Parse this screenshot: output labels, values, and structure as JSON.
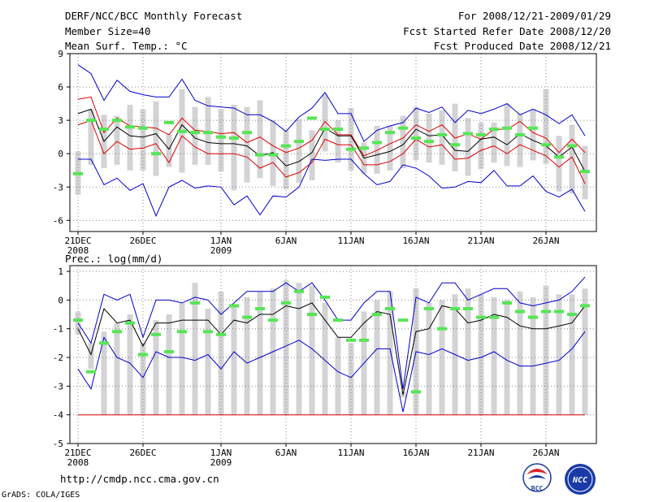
{
  "header": {
    "title": "DERF/NCC/BCC Monthly Forecast",
    "member_size": "Member Size=40",
    "variable": "Mean Surf. Temp.: °C",
    "period": "For 2008/12/21-2009/01/29",
    "started": "Fcst Started Refer Date 2008/12/20",
    "produced": "Fcst Produced Date 2008/12/21"
  },
  "footer": {
    "url": "http://cmdp.ncc.cma.gov.cn",
    "grads": "GrADS: COLA/IGES",
    "logo_bcc": "BCC",
    "logo_ncc": "NCC"
  },
  "colors": {
    "max_line": "#0000cc",
    "min_line": "#0000cc",
    "mean_line": "#000000",
    "spread_lines": "#dd0000",
    "bars": "#d3d3d5",
    "mid_marks": "#55e655",
    "grid": "#888888"
  },
  "chart_data": [
    {
      "type": "line",
      "title": "Mean Surf. Temp.: °C",
      "ylim": [
        -7,
        9
      ],
      "yticks": [
        -6,
        -3,
        0,
        3,
        6,
        9
      ],
      "x": [
        1,
        2,
        3,
        4,
        5,
        6,
        7,
        8,
        9,
        10,
        11,
        12,
        13,
        14,
        15,
        16,
        17,
        18,
        19,
        20,
        21,
        22,
        23,
        24,
        25,
        26,
        27,
        28,
        29,
        30,
        31,
        32,
        33,
        34,
        35,
        36,
        37,
        38,
        39,
        40
      ],
      "xticks": [
        {
          "day": 1,
          "label": "21DEC",
          "label2": "2008"
        },
        {
          "day": 6,
          "label": "26DEC",
          "label2": ""
        },
        {
          "day": 12,
          "label": "1JAN",
          "label2": "2009"
        },
        {
          "day": 17,
          "label": "6JAN",
          "label2": ""
        },
        {
          "day": 22,
          "label": "11JAN",
          "label2": ""
        },
        {
          "day": 27,
          "label": "16JAN",
          "label2": ""
        },
        {
          "day": 32,
          "label": "21JAN",
          "label2": ""
        },
        {
          "day": 37,
          "label": "26JAN",
          "label2": ""
        }
      ],
      "series": [
        {
          "name": "max",
          "values": [
            8.0,
            7.2,
            4.8,
            6.6,
            5.6,
            5.3,
            5.1,
            5.1,
            6.7,
            4.8,
            4.3,
            4.2,
            4.1,
            3.5,
            3.5,
            2.9,
            2.0,
            3.3,
            4.1,
            5.5,
            3.6,
            3.6,
            1.1,
            2.1,
            2.5,
            2.8,
            4.1,
            3.7,
            4.2,
            2.8,
            3.9,
            3.6,
            4.0,
            4.5,
            3.5,
            4.0,
            3.5,
            2.7,
            3.5,
            1.6
          ]
        },
        {
          "name": "spread_upper",
          "values": [
            4.9,
            5.1,
            1.9,
            3.2,
            2.5,
            2.4,
            2.3,
            1.7,
            3.2,
            2.1,
            2.0,
            1.8,
            1.9,
            1.0,
            1.5,
            0.7,
            0.1,
            0.5,
            1.2,
            2.9,
            1.7,
            1.7,
            -0.2,
            0.3,
            0.9,
            1.4,
            2.6,
            2.0,
            2.6,
            1.4,
            1.8,
            1.3,
            2.2,
            2.2,
            2.9,
            1.9,
            1.4,
            0.1,
            1.3,
            0.1
          ]
        },
        {
          "name": "mean",
          "values": [
            3.6,
            4.0,
            1.1,
            2.4,
            1.6,
            1.5,
            1.8,
            0.4,
            2.6,
            1.4,
            1.0,
            0.9,
            0.9,
            0.7,
            -0.2,
            0.1,
            -1.1,
            -0.7,
            0.1,
            2.3,
            1.6,
            1.6,
            -0.4,
            -0.1,
            0.2,
            0.8,
            2.2,
            1.6,
            1.7,
            0.3,
            0.2,
            1.3,
            1.5,
            0.8,
            1.8,
            1.2,
            0.7,
            -0.3,
            0.6,
            -1.6
          ]
        },
        {
          "name": "spread_lower",
          "values": [
            2.6,
            3.0,
            0.0,
            1.1,
            0.4,
            0.5,
            0.9,
            -0.8,
            1.6,
            0.6,
            0.0,
            0.0,
            0.0,
            -0.3,
            -1.3,
            -0.8,
            -2.1,
            -1.7,
            -0.8,
            1.3,
            0.8,
            0.8,
            -1.0,
            -1.0,
            -0.7,
            0.0,
            1.3,
            0.6,
            0.8,
            -0.5,
            -0.4,
            0.3,
            0.7,
            0.0,
            0.8,
            0.3,
            -0.2,
            -1.2,
            -0.3,
            -2.7
          ]
        },
        {
          "name": "min",
          "values": [
            -0.5,
            -0.5,
            -2.8,
            -2.2,
            -3.3,
            -2.7,
            -5.6,
            -3.0,
            -2.4,
            -3.1,
            -2.9,
            -3.0,
            -4.6,
            -3.8,
            -5.5,
            -3.8,
            -3.9,
            -3.0,
            -0.5,
            -0.6,
            -0.5,
            -0.5,
            -1.8,
            -2.8,
            -2.5,
            -1.0,
            -1.3,
            -2.0,
            -3.1,
            -3.0,
            -2.5,
            -2.6,
            -1.5,
            -2.9,
            -2.9,
            -2.0,
            -3.4,
            -3.9,
            -3.2,
            -5.2
          ]
        }
      ],
      "bars_low": [
        -3.7,
        -1.0,
        -1.3,
        -1.0,
        -1.5,
        -1.5,
        -2.0,
        -1.2,
        -1.7,
        -1.0,
        -1.0,
        -1.6,
        -3.3,
        -2.6,
        -2.2,
        -2.9,
        -3.2,
        -2.6,
        -2.4,
        0.2,
        -0.8,
        -1.5,
        -1.8,
        -1.8,
        -1.5,
        -1.3,
        -0.6,
        -0.8,
        -1.0,
        -1.6,
        -2.0,
        -1.4,
        -0.8,
        -1.1,
        -1.2,
        -0.6,
        -0.9,
        -3.4,
        -3.6,
        -4.1
      ],
      "bars_high": [
        0.2,
        4.0,
        3.5,
        3.4,
        4.4,
        4.0,
        4.7,
        1.8,
        5.8,
        4.2,
        5.1,
        4.0,
        4.4,
        4.2,
        4.8,
        3.0,
        2.1,
        3.1,
        2.1,
        5.3,
        3.0,
        4.1,
        1.0,
        2.5,
        2.5,
        3.4,
        4.2,
        3.6,
        3.9,
        4.5,
        3.2,
        2.8,
        2.8,
        4.5,
        3.6,
        4.0,
        5.8,
        1.6,
        2.6,
        0.7
      ],
      "mid_marks": [
        -1.8,
        3.0,
        2.2,
        3.0,
        2.4,
        2.3,
        0.0,
        2.8,
        2.0,
        1.9,
        1.9,
        1.5,
        1.4,
        1.9,
        -0.1,
        -0.1,
        0.7,
        1.1,
        3.2,
        2.2,
        2.2,
        0.4,
        0.5,
        1.0,
        1.9,
        2.3,
        1.4,
        1.1,
        1.7,
        0.8,
        1.8,
        1.7,
        2.2,
        2.3,
        1.7,
        2.3,
        0.8,
        -0.3,
        0.7,
        -1.6
      ]
    },
    {
      "type": "line",
      "title": "Prec.: log(mm/d)",
      "ylim": [
        -5,
        1.2
      ],
      "yticks": [
        -5,
        -4,
        -3,
        -2,
        -1,
        0,
        1
      ],
      "x": [
        1,
        2,
        3,
        4,
        5,
        6,
        7,
        8,
        9,
        10,
        11,
        12,
        13,
        14,
        15,
        16,
        17,
        18,
        19,
        20,
        21,
        22,
        23,
        24,
        25,
        26,
        27,
        28,
        29,
        30,
        31,
        32,
        33,
        34,
        35,
        36,
        37,
        38,
        39,
        40
      ],
      "xticks": [
        {
          "day": 1,
          "label": "21DEC",
          "label2": "2008"
        },
        {
          "day": 6,
          "label": "26DEC",
          "label2": ""
        },
        {
          "day": 12,
          "label": "1JAN",
          "label2": "2009"
        },
        {
          "day": 17,
          "label": "6JAN",
          "label2": ""
        },
        {
          "day": 22,
          "label": "11JAN",
          "label2": ""
        },
        {
          "day": 27,
          "label": "16JAN",
          "label2": ""
        },
        {
          "day": 32,
          "label": "21JAN",
          "label2": ""
        },
        {
          "day": 37,
          "label": "26JAN",
          "label2": ""
        }
      ],
      "series": [
        {
          "name": "max",
          "values": [
            -0.8,
            -1.5,
            0.2,
            0.0,
            0.2,
            -1.3,
            0.0,
            0.0,
            -0.1,
            0.1,
            0.0,
            -0.5,
            -0.1,
            0.3,
            0.3,
            0.3,
            0.6,
            0.3,
            0.6,
            0.0,
            -0.7,
            -0.7,
            -0.1,
            0.3,
            0.3,
            -3.1,
            0.1,
            -0.1,
            0.6,
            0.6,
            0.0,
            0.2,
            0.4,
            0.4,
            -0.1,
            -0.2,
            -0.1,
            0.0,
            0.3,
            0.8
          ]
        },
        {
          "name": "mean",
          "values": [
            -1.0,
            -1.9,
            -0.3,
            -0.8,
            -0.7,
            -1.6,
            -0.8,
            -0.8,
            -0.7,
            -0.7,
            -0.7,
            -1.2,
            -0.7,
            -0.8,
            -0.5,
            -0.5,
            -0.2,
            -0.3,
            -0.1,
            -0.7,
            -1.3,
            -1.3,
            -0.8,
            -0.4,
            -0.5,
            -3.3,
            -1.1,
            -1.0,
            -0.2,
            -0.3,
            -0.8,
            -0.7,
            -0.5,
            -0.6,
            -0.9,
            -1.0,
            -1.0,
            -0.9,
            -0.8,
            -0.2
          ]
        },
        {
          "name": "min",
          "values": [
            -2.4,
            -3.1,
            -1.3,
            -2.0,
            -2.2,
            -2.7,
            -1.8,
            -2.0,
            -2.0,
            -2.1,
            -1.9,
            -2.4,
            -1.8,
            -2.2,
            -2.0,
            -1.8,
            -1.6,
            -1.4,
            -1.7,
            -2.1,
            -2.5,
            -2.7,
            -2.2,
            -1.7,
            -1.7,
            -3.9,
            -1.8,
            -1.9,
            -1.7,
            -1.9,
            -2.1,
            -2.0,
            -1.8,
            -2.1,
            -2.3,
            -2.3,
            -2.2,
            -2.1,
            -1.7,
            -1.1
          ]
        },
        {
          "name": "floor",
          "values": [
            -4.0,
            -4.0,
            -4.0,
            -4.0,
            -4.0,
            -4.0,
            -4.0,
            -4.0,
            -4.0,
            -4.0,
            -4.0,
            -4.0,
            -4.0,
            -4.0,
            -4.0,
            -4.0,
            -4.0,
            -4.0,
            -4.0,
            -4.0,
            -4.0,
            -4.0,
            -4.0,
            -4.0,
            -4.0,
            -4.0,
            -4.0,
            -4.0,
            -4.0,
            -4.0,
            -4.0,
            -4.0,
            -4.0,
            -4.0,
            -4.0,
            -4.0,
            -4.0,
            -4.0,
            -4.0,
            -4.0
          ]
        }
      ],
      "bars_low": [
        -1.2,
        -1.5,
        -4.0,
        -4.0,
        -4.0,
        -4.0,
        -4.0,
        -4.0,
        -4.0,
        -4.0,
        -4.0,
        -4.0,
        -4.0,
        -4.0,
        -4.0,
        -4.0,
        -4.0,
        -4.0,
        -4.0,
        -4.0,
        -4.0,
        -4.0,
        -4.0,
        -4.0,
        -4.0,
        -3.4,
        -4.0,
        -4.0,
        -4.0,
        -4.0,
        -4.0,
        -4.0,
        -4.0,
        -4.0,
        -4.0,
        -4.0,
        -4.0,
        -4.0,
        -4.0,
        -4.0
      ],
      "bars_high": [
        -0.4,
        -2.4,
        -1.1,
        -0.8,
        -0.5,
        -1.5,
        -0.7,
        -0.5,
        -0.1,
        0.6,
        -0.3,
        0.3,
        -0.2,
        0.1,
        0.3,
        0.4,
        0.7,
        0.6,
        0.5,
        -0.1,
        -1.3,
        -1.5,
        -0.4,
        0.0,
        0.3,
        -3.2,
        0.4,
        -0.1,
        0.0,
        0.2,
        0.4,
        0.2,
        0.1,
        0.0,
        0.3,
        0.1,
        0.5,
        0.2,
        0.2,
        0.4
      ],
      "mid_marks": [
        -0.7,
        -2.5,
        -1.5,
        -1.1,
        -0.8,
        -1.9,
        -1.2,
        -1.8,
        -1.1,
        -0.1,
        -1.1,
        -1.2,
        -0.2,
        -0.6,
        -0.3,
        -0.7,
        -0.1,
        0.3,
        -0.5,
        0.1,
        -0.7,
        -1.4,
        -1.4,
        -0.5,
        -0.3,
        -0.7,
        -3.2,
        -0.3,
        -1.0,
        -0.3,
        -0.3,
        -0.6,
        -0.6,
        -0.1,
        -0.4,
        -0.6,
        -0.4,
        -0.4,
        -0.5,
        -0.2
      ]
    }
  ]
}
